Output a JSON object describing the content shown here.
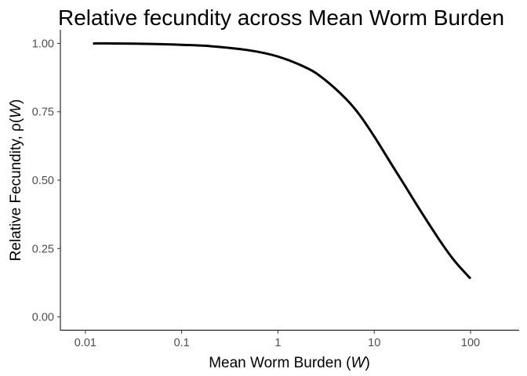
{
  "chart_data": {
    "type": "line",
    "title": "Relative fecundity across Mean Worm Burden",
    "xlabel": {
      "text": "Mean Worm Burden ",
      "symbol": "W"
    },
    "ylabel": {
      "text": "Relative Fecundity, ρ",
      "symbol": "W"
    },
    "x_scale": "log10",
    "xlim": [
      0.0055,
      320
    ],
    "ylim": [
      -0.05,
      1.05
    ],
    "x_ticks": [
      0.01,
      0.1,
      1,
      10,
      100
    ],
    "x_tick_labels": [
      "0.01",
      "0.1",
      "1",
      "10",
      "100"
    ],
    "y_ticks": [
      0,
      0.25,
      0.5,
      0.75,
      1
    ],
    "y_tick_labels": [
      "0.00",
      "0.25",
      "0.50",
      "0.75",
      "1.00"
    ],
    "grid": false,
    "legend": "none",
    "series": [
      {
        "color": "#000000",
        "x": [
          0.012,
          0.02,
          0.05,
          0.1,
          0.2,
          0.5,
          1,
          2,
          3,
          5,
          7,
          10,
          15,
          20,
          30,
          50,
          70,
          100
        ],
        "y": [
          1.0,
          1.0,
          0.998,
          0.995,
          0.99,
          0.975,
          0.952,
          0.91,
          0.87,
          0.8,
          0.74,
          0.66,
          0.56,
          0.49,
          0.39,
          0.27,
          0.2,
          0.14
        ]
      }
    ]
  }
}
